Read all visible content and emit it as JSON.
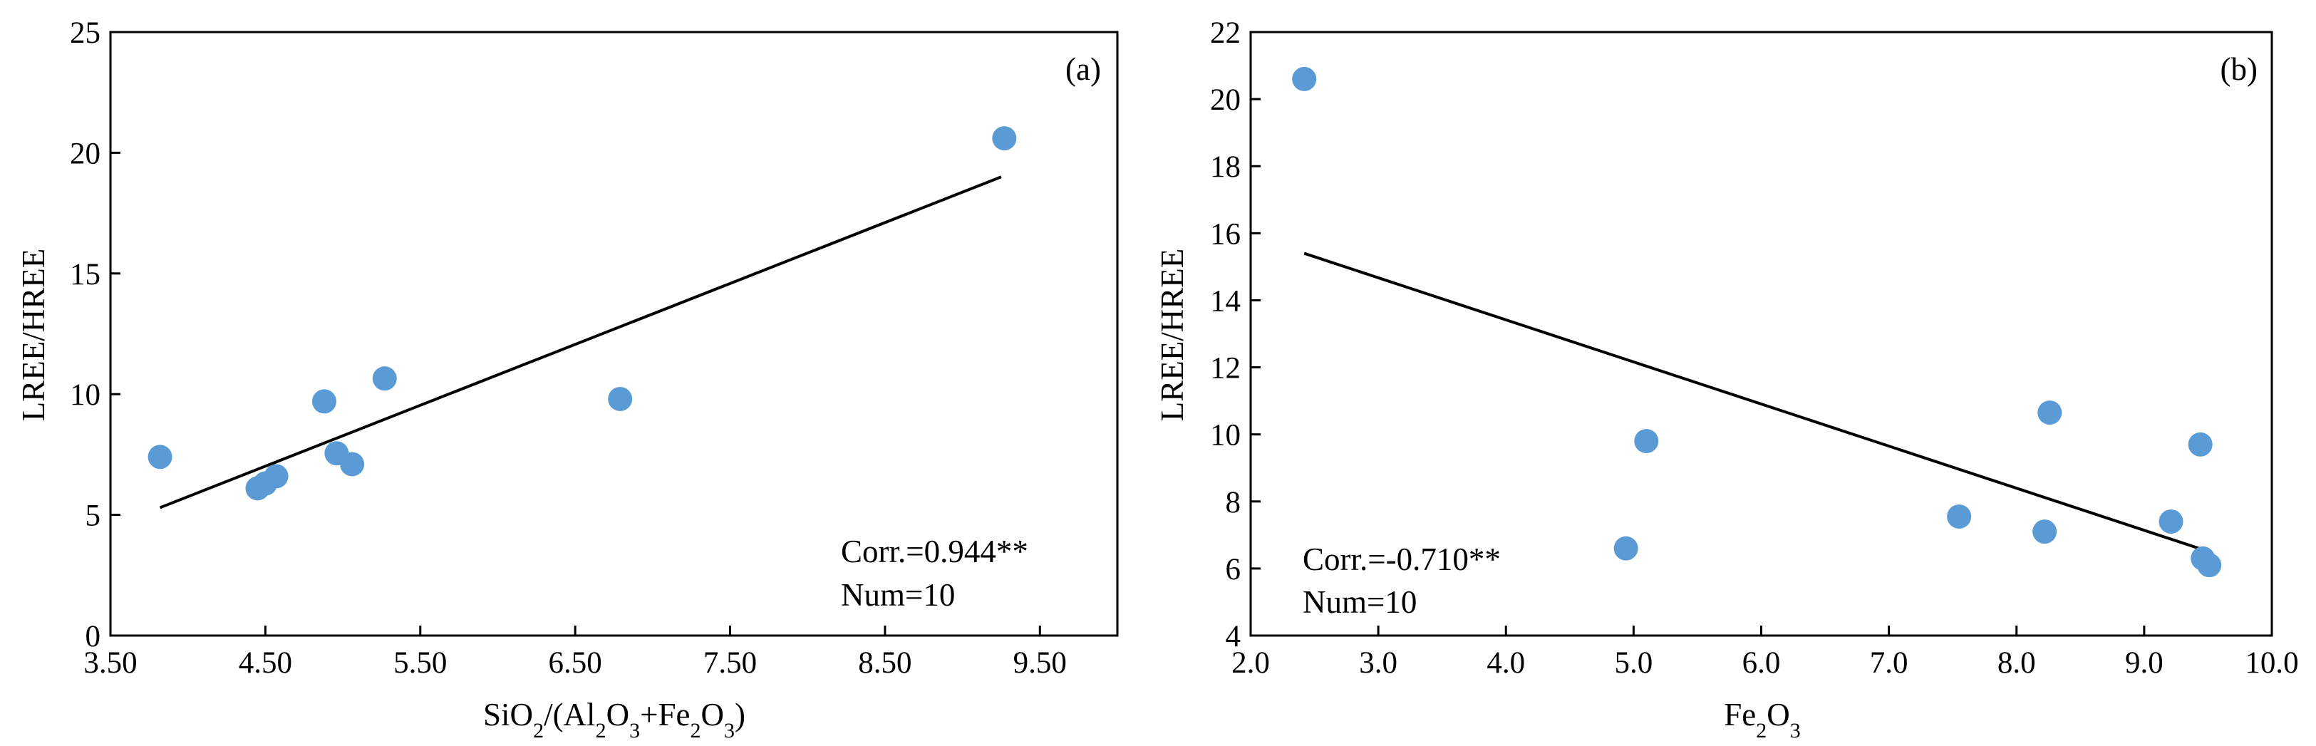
{
  "chart_data": [
    {
      "type": "scatter",
      "panel_label": "(a)",
      "xlabel": {
        "base": "SiO",
        "s1": "2",
        "mid": "/(Al",
        "s2": "2",
        "o1": "O",
        "s3": "3",
        "plus": "+Fe",
        "s4": "2",
        "o2": "O",
        "s5": "3",
        "close": ")"
      },
      "ylabel": "LREE/HREE",
      "xlim": [
        3.5,
        10.0
      ],
      "ylim": [
        0,
        25
      ],
      "xticks": [
        3.5,
        4.5,
        5.5,
        6.5,
        7.5,
        8.5,
        9.5
      ],
      "xtick_labels": [
        "3.50",
        "4.50",
        "5.50",
        "6.50",
        "7.50",
        "8.50",
        "9.50"
      ],
      "yticks": [
        0,
        5,
        10,
        15,
        20,
        25
      ],
      "ytick_labels": [
        "0",
        "5",
        "10",
        "15",
        "20",
        "25"
      ],
      "points": [
        {
          "x": 3.82,
          "y": 7.4
        },
        {
          "x": 4.45,
          "y": 6.1
        },
        {
          "x": 4.5,
          "y": 6.3
        },
        {
          "x": 4.57,
          "y": 6.6
        },
        {
          "x": 4.88,
          "y": 9.7
        },
        {
          "x": 4.96,
          "y": 7.55
        },
        {
          "x": 5.06,
          "y": 7.1
        },
        {
          "x": 5.27,
          "y": 10.65
        },
        {
          "x": 6.79,
          "y": 9.8
        },
        {
          "x": 9.27,
          "y": 20.6
        }
      ],
      "fit_line": {
        "x": [
          3.82,
          9.25
        ],
        "y": [
          5.3,
          19.0
        ]
      },
      "corr_text": "Corr.=0.944**",
      "num_text": "Num=10",
      "marker_color": "#5b9bd5"
    },
    {
      "type": "scatter",
      "panel_label": "(b)",
      "xlabel": {
        "base": "Fe",
        "s1": "2",
        "o1": "O",
        "s2": "3"
      },
      "ylabel": "LREE/HREE",
      "xlim": [
        2.0,
        10.0
      ],
      "ylim": [
        4,
        22
      ],
      "xticks": [
        2,
        3,
        4,
        5,
        6,
        7,
        8,
        9,
        10
      ],
      "xtick_labels": [
        "2.0",
        "3.0",
        "4.0",
        "5.0",
        "6.0",
        "7.0",
        "8.0",
        "9.0",
        "10.0"
      ],
      "yticks": [
        4,
        6,
        8,
        10,
        12,
        14,
        16,
        18,
        20,
        22
      ],
      "ytick_labels": [
        "4",
        "6",
        "8",
        "10",
        "12",
        "14",
        "16",
        "18",
        "20",
        "22"
      ],
      "points": [
        {
          "x": 2.42,
          "y": 20.6
        },
        {
          "x": 4.94,
          "y": 6.6
        },
        {
          "x": 5.1,
          "y": 9.8
        },
        {
          "x": 7.55,
          "y": 7.55
        },
        {
          "x": 8.22,
          "y": 7.1
        },
        {
          "x": 8.26,
          "y": 10.65
        },
        {
          "x": 9.21,
          "y": 7.4
        },
        {
          "x": 9.44,
          "y": 9.7
        },
        {
          "x": 9.46,
          "y": 6.3
        },
        {
          "x": 9.51,
          "y": 6.1
        }
      ],
      "fit_line": {
        "x": [
          2.42,
          9.51
        ],
        "y": [
          15.4,
          6.5
        ]
      },
      "corr_text": "Corr.=-0.710**",
      "num_text": "Num=10",
      "marker_color": "#5b9bd5"
    }
  ]
}
